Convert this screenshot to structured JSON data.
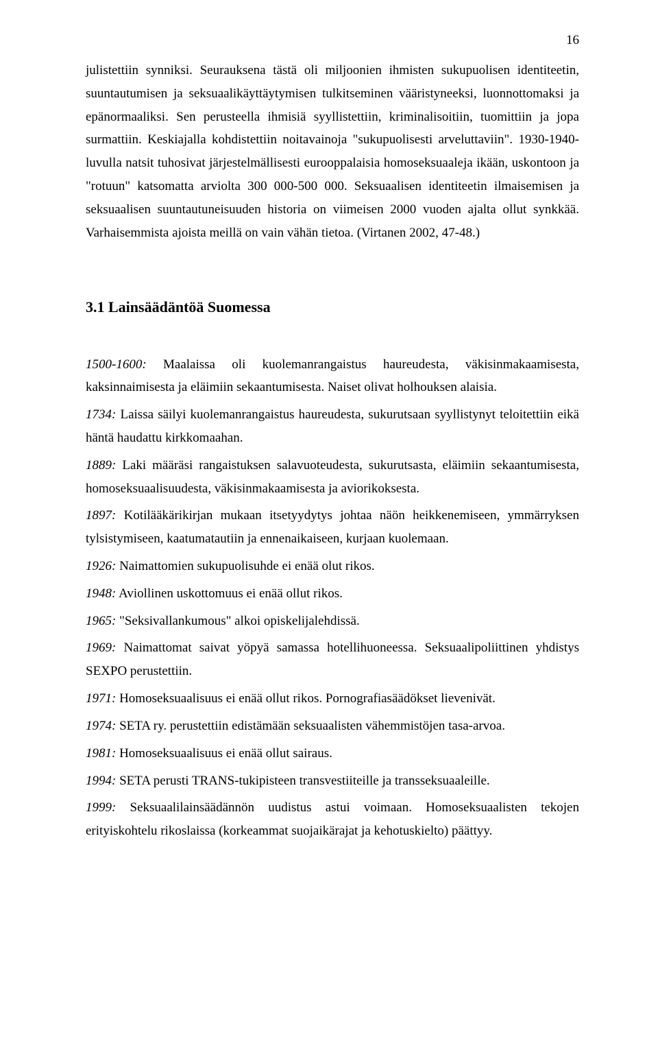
{
  "pageNumber": "16",
  "paragraph1": "julistettiin synniksi. Seurauksena tästä oli miljoonien ihmisten sukupuolisen identiteetin, suuntautumisen ja seksuaalikäyttäytymisen tulkitseminen vääristyneeksi, luonnottomaksi ja epänormaaliksi. Sen perusteella ihmisiä syyllistettiin, kriminalisoitiin, tuomittiin ja jopa surmattiin. Keskiajalla kohdistettiin noitavainoja \"sukupuolisesti arveluttaviin\". 1930-1940-luvulla natsit tuhosivat järjestelmällisesti eurooppalaisia homoseksuaaleja ikään, uskontoon ja \"rotuun\" katsomatta arviolta 300 000-500 000. Seksuaalisen identiteetin ilmaisemisen ja seksuaalisen suuntautuneisuuden historia on viimeisen 2000 vuoden ajalta ollut synkkää. Varhaisemmista ajoista meillä on vain vähän tietoa. (Virtanen 2002, 47-48.)",
  "sectionHeading": "3.1  Lainsäädäntöä Suomessa",
  "entries": [
    {
      "year": "1500-1600:",
      "text": " Maalaissa oli kuolemanrangaistus haureudesta, väkisinmakaamisesta, kaksinnaimisesta ja eläimiin sekaantumisesta. Naiset olivat holhouksen alaisia."
    },
    {
      "year": "1734:",
      "text": " Laissa säilyi kuolemanrangaistus haureudesta, sukurutsaan syyllistynyt teloitettiin eikä häntä haudattu kirkkomaahan."
    },
    {
      "year": "1889:",
      "text": " Laki määräsi rangaistuksen salavuoteudesta, sukurutsasta, eläimiin sekaantumisesta, homoseksuaalisuudesta, väkisinmakaamisesta ja aviorikoksesta."
    },
    {
      "year": "1897:",
      "text": " Kotilääkärikirjan mukaan itsetyydytys johtaa näön heikkenemiseen, ymmärryksen tylsistymiseen, kaatumatautiin ja ennenaikaiseen, kurjaan kuolemaan."
    },
    {
      "year": "1926:",
      "text": " Naimattomien sukupuolisuhde ei enää olut rikos."
    },
    {
      "year": "1948:",
      "text": " Aviollinen uskottomuus ei enää ollut rikos."
    },
    {
      "year": "1965:",
      "text": " \"Seksivallankumous\" alkoi opiskelijalehdissä."
    },
    {
      "year": "1969:",
      "text": " Naimattomat saivat yöpyä samassa hotellihuoneessa. Seksuaalipoliittinen yhdistys SEXPO perustettiin."
    },
    {
      "year": "1971:",
      "text": " Homoseksuaalisuus ei enää ollut rikos. Pornografiasäädökset lievenivät."
    },
    {
      "year": "1974:",
      "text": " SETA ry. perustettiin edistämään seksuaalisten vähemmistöjen tasa-arvoa."
    },
    {
      "year": "1981:",
      "text": " Homoseksuaalisuus ei enää ollut sairaus."
    },
    {
      "year": "1994:",
      "text": " SETA perusti TRANS-tukipisteen transvestiiteille ja transseksuaaleille."
    },
    {
      "year": "1999:",
      "text": " Seksuaalilainsäädännön uudistus astui voimaan. Homoseksuaalisten tekojen erityiskohtelu rikoslaissa (korkeammat suojaikärajat ja kehotuskielto) päättyy."
    }
  ]
}
